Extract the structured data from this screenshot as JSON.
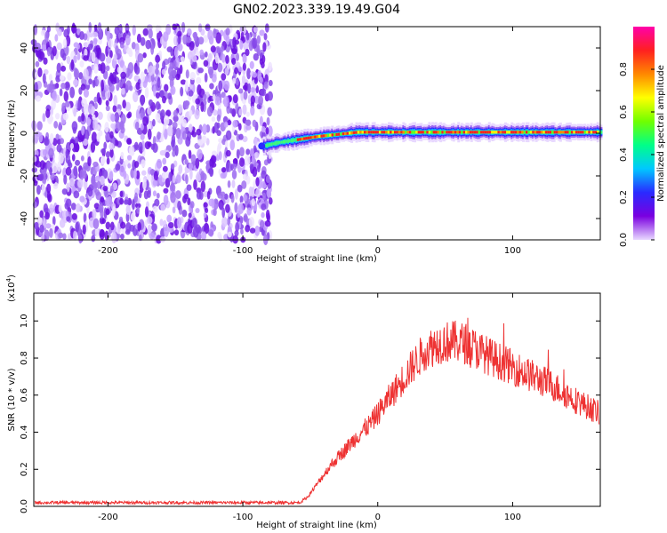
{
  "title": "GN02.2023.339.19.49.G04",
  "chart_data": [
    {
      "type": "heatmap",
      "name": "spectrogram",
      "xlabel": "Height of straight line (km)",
      "ylabel": "Frequency (Hz)",
      "xlim": [
        -255,
        165
      ],
      "ylim": [
        -50,
        50
      ],
      "xticks": [
        -200,
        -100,
        0,
        100
      ],
      "yticks": [
        -40,
        -20,
        0,
        20,
        40
      ],
      "noise_region_x": [
        -255,
        -78
      ],
      "signal_line": {
        "x": [
          -85,
          -75,
          -60,
          -45,
          -30,
          -15,
          0,
          20,
          50,
          80,
          110,
          140,
          165
        ],
        "y": [
          -6,
          -4.5,
          -3,
          -1.5,
          -0.5,
          0.5,
          0.5,
          0.5,
          0.5,
          0.5,
          0.5,
          0.5,
          0.5
        ]
      },
      "colorbar": {
        "label": "Normalized spectral amplitude",
        "range": [
          0,
          1
        ],
        "ticks": [
          "0.0",
          "0.2",
          "0.4",
          "0.6",
          "0.8"
        ],
        "colors": [
          "#e8d8ff",
          "#7a00e0",
          "#2a2aff",
          "#00c8ff",
          "#00ff88",
          "#70ff00",
          "#ffff00",
          "#ff8800",
          "#ff2020",
          "#ff00aa"
        ]
      }
    },
    {
      "type": "line",
      "name": "snr",
      "xlabel": "Height of straight line (km)",
      "ylabel": "SNR (10 * v/v)",
      "multiplier_label": "(x10",
      "multiplier_exp": "4",
      "xlim": [
        -255,
        165
      ],
      "ylim": [
        0,
        1.15
      ],
      "xticks": [
        -200,
        -100,
        0,
        100
      ],
      "yticks": [
        "0.0",
        "0.2",
        "0.4",
        "0.6",
        "0.8",
        "1.0"
      ],
      "color": "#ee3333",
      "envelope": {
        "x": [
          -255,
          -58,
          -52,
          -45,
          -35,
          -25,
          -15,
          -5,
          5,
          15,
          25,
          35,
          45,
          55,
          65,
          75,
          85,
          100,
          115,
          130,
          145,
          165
        ],
        "y": [
          0.02,
          0.02,
          0.05,
          0.12,
          0.22,
          0.3,
          0.38,
          0.45,
          0.55,
          0.65,
          0.75,
          0.84,
          0.88,
          0.89,
          0.88,
          0.84,
          0.8,
          0.75,
          0.7,
          0.65,
          0.58,
          0.5
        ]
      }
    }
  ]
}
